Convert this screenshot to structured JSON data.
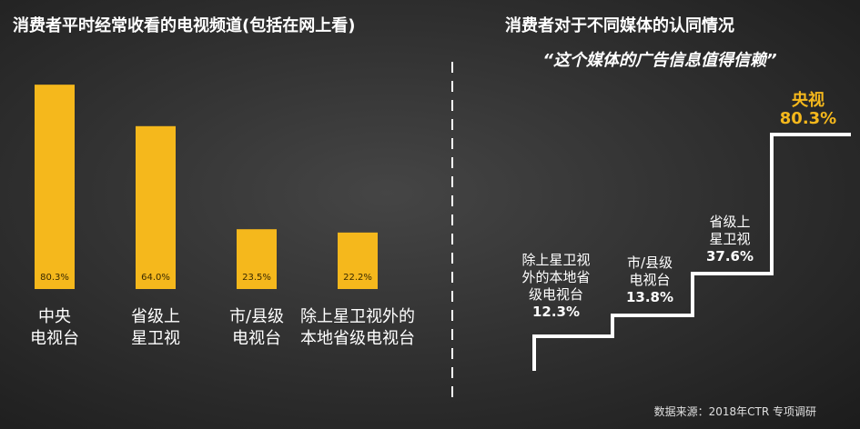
{
  "left_title": "消费者平时经常收看的电视频道(包括在网上看)",
  "right_title": "消费者对于不同媒体的认同情况",
  "right_subtitle": "“这个媒体的广告信息值得信赖”",
  "source": "数据来源：2018年CTR  专项调研",
  "colors": {
    "bar": "#f5b81c",
    "highlight": "#f5b81c",
    "text": "#ffffff"
  },
  "chart_data": [
    {
      "type": "bar",
      "categories": [
        "中央电视台",
        "省级上星卫视",
        "市/县级电视台",
        "除上星卫视外的本地省级电视台"
      ],
      "category_lines": [
        [
          "中央",
          "电视台"
        ],
        [
          "省级上",
          "星卫视"
        ],
        [
          "市/县级",
          "电视台"
        ],
        [
          "除上星卫视外的",
          "本地省级电视台"
        ]
      ],
      "values": [
        80.3,
        64.0,
        23.5,
        22.2
      ],
      "value_labels": [
        "80.3%",
        "64.0%",
        "23.5%",
        "22.2%"
      ],
      "ylim": [
        0,
        100
      ],
      "title": "消费者平时经常收看的电视频道(包括在网上看)"
    },
    {
      "type": "step",
      "title": "消费者对于不同媒体的认同情况",
      "subtitle": "“这个媒体的广告信息值得信赖”",
      "steps": [
        {
          "lines": [
            "除上星卫视",
            "外的本地省",
            "级电视台"
          ],
          "value": 12.3,
          "value_label": "12.3%"
        },
        {
          "lines": [
            "市/县级",
            "电视台"
          ],
          "value": 13.8,
          "value_label": "13.8%"
        },
        {
          "lines": [
            "省级上",
            "星卫视"
          ],
          "value": 37.6,
          "value_label": "37.6%"
        },
        {
          "lines": [
            "央视"
          ],
          "value": 80.3,
          "value_label": "80.3%"
        }
      ]
    }
  ]
}
